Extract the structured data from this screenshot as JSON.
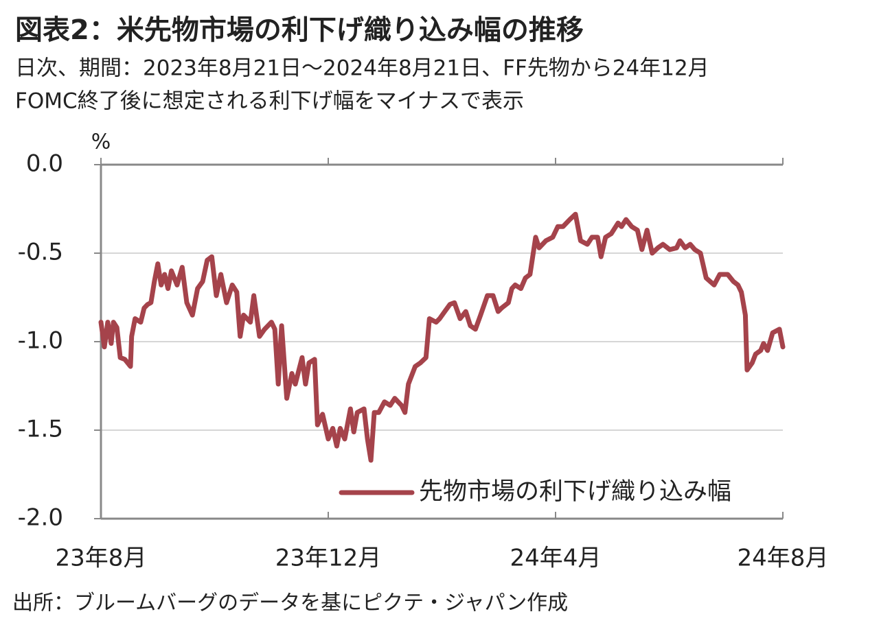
{
  "chart_data": {
    "type": "line",
    "title": "図表2：米先物市場の利下げ織り込み幅の推移",
    "subtitle": [
      "日次、期間：2023年8月21日～2024年8月21日、FF先物から24年12月",
      "FOMC終了後に想定される利下げ幅をマイナスで表示"
    ],
    "y_unit": "%",
    "source": "出所：ブルームバーグのデータを基にピクテ・ジャパン作成",
    "legend_position": "lower right",
    "xlim": [
      0,
      12
    ],
    "xticks": [
      {
        "value": 0,
        "label": "23年8月"
      },
      {
        "value": 4,
        "label": "23年12月"
      },
      {
        "value": 8,
        "label": "24年4月"
      },
      {
        "value": 12,
        "label": "24年8月"
      }
    ],
    "ylim": [
      -2.0,
      0.0
    ],
    "yticks": [
      {
        "value": 0.0,
        "label": "0.0"
      },
      {
        "value": -0.5,
        "label": "-0.5"
      },
      {
        "value": -1.0,
        "label": "-1.0"
      },
      {
        "value": -1.5,
        "label": "-1.5"
      },
      {
        "value": -2.0,
        "label": "-2.0"
      }
    ],
    "grid": true,
    "x": [
      0,
      0.06,
      0.12,
      0.18,
      0.22,
      0.28,
      0.34,
      0.42,
      0.52,
      0.54,
      0.6,
      0.7,
      0.76,
      0.82,
      0.88,
      0.94,
      1.0,
      1.06,
      1.12,
      1.18,
      1.24,
      1.34,
      1.43,
      1.51,
      1.61,
      1.7,
      1.79,
      1.87,
      1.95,
      2.03,
      2.11,
      2.21,
      2.31,
      2.39,
      2.45,
      2.51,
      2.63,
      2.69,
      2.79,
      2.88,
      3.0,
      3.06,
      3.12,
      3.18,
      3.27,
      3.36,
      3.42,
      3.54,
      3.6,
      3.66,
      3.76,
      3.81,
      3.9,
      4.0,
      4.08,
      4.15,
      4.21,
      4.29,
      4.39,
      4.45,
      4.51,
      4.63,
      4.69,
      4.75,
      4.81,
      4.89,
      4.99,
      5.09,
      5.17,
      5.29,
      5.35,
      5.41,
      5.53,
      5.62,
      5.72,
      5.78,
      5.9,
      5.96,
      6.05,
      6.14,
      6.22,
      6.32,
      6.42,
      6.5,
      6.59,
      6.68,
      6.8,
      6.9,
      6.99,
      7.05,
      7.17,
      7.23,
      7.29,
      7.39,
      7.47,
      7.55,
      7.65,
      7.71,
      7.83,
      7.95,
      8.04,
      8.13,
      8.25,
      8.35,
      8.44,
      8.56,
      8.64,
      8.74,
      8.8,
      8.88,
      8.98,
      9.1,
      9.16,
      9.24,
      9.34,
      9.44,
      9.52,
      9.61,
      9.7,
      9.8,
      9.89,
      10.01,
      10.13,
      10.19,
      10.28,
      10.37,
      10.45,
      10.55,
      10.65,
      10.79,
      10.89,
      11.03,
      11.13,
      11.21,
      11.27,
      11.34,
      11.37,
      11.46,
      11.52,
      11.61,
      11.66,
      11.73,
      11.82,
      11.94,
      12.0
    ],
    "series": [
      {
        "name": "先物市場の利下げ織り込み幅",
        "color": "#a5434b",
        "values": [
          -0.89,
          -1.03,
          -0.89,
          -1.01,
          -0.89,
          -0.92,
          -1.09,
          -1.1,
          -1.14,
          -0.97,
          -0.87,
          -0.89,
          -0.81,
          -0.79,
          -0.78,
          -0.66,
          -0.56,
          -0.68,
          -0.62,
          -0.7,
          -0.6,
          -0.68,
          -0.58,
          -0.78,
          -0.85,
          -0.7,
          -0.66,
          -0.54,
          -0.52,
          -0.74,
          -0.62,
          -0.78,
          -0.68,
          -0.72,
          -0.97,
          -0.85,
          -0.89,
          -0.74,
          -0.97,
          -0.93,
          -0.89,
          -0.93,
          -1.24,
          -0.91,
          -1.32,
          -1.18,
          -1.24,
          -1.09,
          -1.24,
          -1.12,
          -1.1,
          -1.47,
          -1.41,
          -1.55,
          -1.49,
          -1.59,
          -1.49,
          -1.55,
          -1.38,
          -1.51,
          -1.4,
          -1.38,
          -1.55,
          -1.67,
          -1.4,
          -1.4,
          -1.34,
          -1.36,
          -1.32,
          -1.36,
          -1.4,
          -1.24,
          -1.14,
          -1.12,
          -1.09,
          -0.87,
          -0.89,
          -0.87,
          -0.83,
          -0.79,
          -0.78,
          -0.87,
          -0.83,
          -0.91,
          -0.93,
          -0.85,
          -0.74,
          -0.74,
          -0.83,
          -0.81,
          -0.78,
          -0.7,
          -0.68,
          -0.7,
          -0.64,
          -0.62,
          -0.41,
          -0.47,
          -0.43,
          -0.41,
          -0.35,
          -0.35,
          -0.31,
          -0.28,
          -0.43,
          -0.45,
          -0.41,
          -0.41,
          -0.52,
          -0.41,
          -0.39,
          -0.33,
          -0.35,
          -0.31,
          -0.35,
          -0.37,
          -0.48,
          -0.37,
          -0.5,
          -0.47,
          -0.45,
          -0.48,
          -0.47,
          -0.43,
          -0.47,
          -0.45,
          -0.48,
          -0.5,
          -0.64,
          -0.68,
          -0.62,
          -0.62,
          -0.66,
          -0.68,
          -0.72,
          -0.85,
          -1.16,
          -1.12,
          -1.07,
          -1.05,
          -1.01,
          -1.05,
          -0.95,
          -0.93,
          -1.03
        ]
      }
    ]
  }
}
